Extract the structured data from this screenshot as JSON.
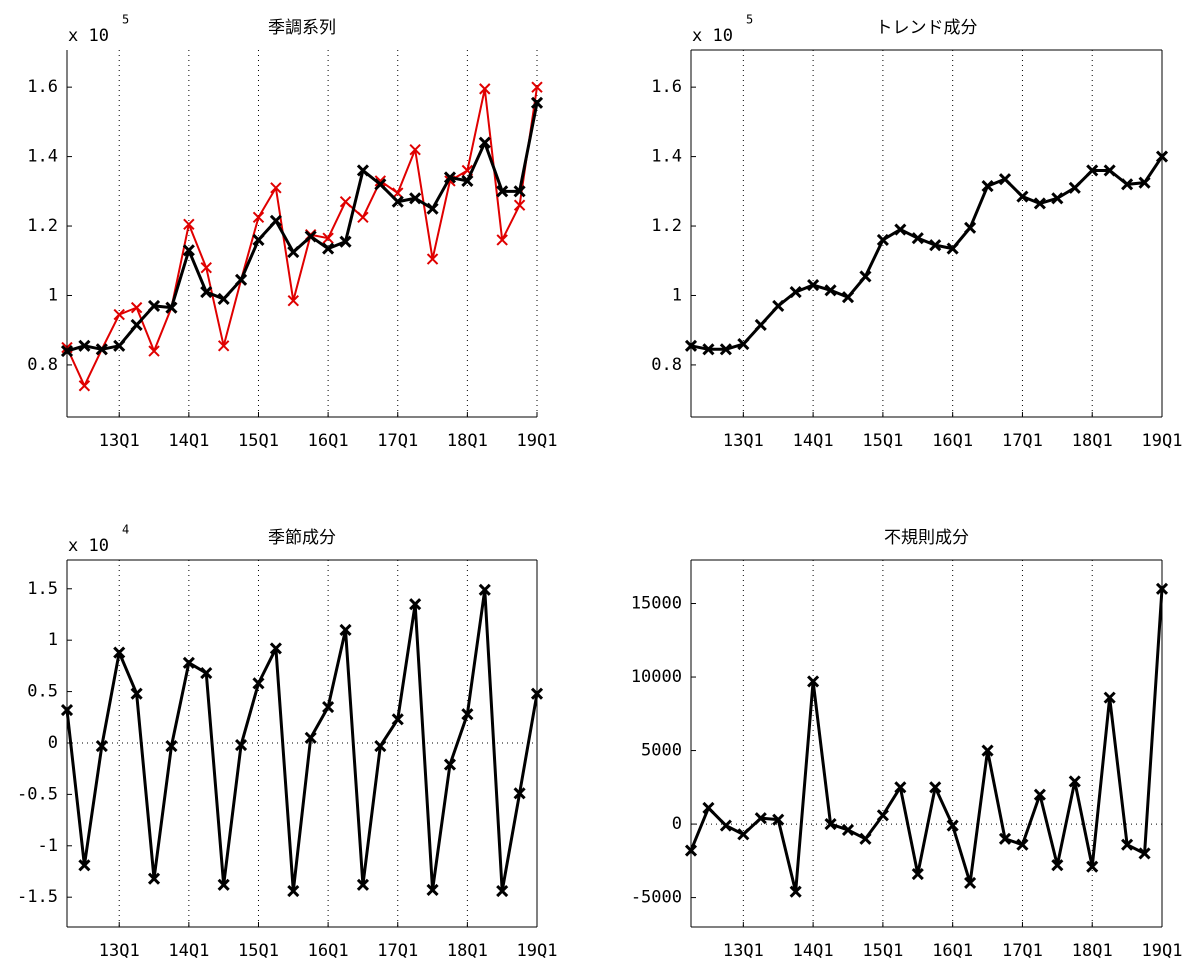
{
  "chart_data": [
    {
      "type": "line",
      "title": "季調系列",
      "multiplier": {
        "base": "x 10",
        "exponent": "5"
      },
      "categories": [
        null,
        null,
        null,
        "13Q1",
        null,
        null,
        null,
        "14Q1",
        null,
        null,
        null,
        "15Q1",
        null,
        null,
        null,
        "16Q1",
        null,
        null,
        null,
        "17Q1",
        null,
        null,
        null,
        "18Q1",
        null,
        null,
        null,
        "19Q1"
      ],
      "series": [
        {
          "color": "#e00000",
          "values": [
            85000,
            74000,
            84500,
            94500,
            96500,
            84000,
            96500,
            120500,
            108000,
            85500,
            104500,
            122500,
            131000,
            98500,
            117500,
            116500,
            127000,
            122500,
            133000,
            129500,
            142000,
            110500,
            133000,
            136000,
            159500,
            116000,
            126000,
            160000
          ]
        },
        {
          "color": "#000000",
          "values": [
            84000,
            85500,
            84500,
            85500,
            91500,
            97000,
            96500,
            113000,
            101000,
            99000,
            104500,
            116000,
            121500,
            112500,
            117000,
            113500,
            115500,
            136000,
            132000,
            127000,
            128000,
            125000,
            134000,
            133000,
            144000,
            130000,
            130000,
            155500
          ]
        }
      ],
      "ylim": [
        65000,
        170700
      ],
      "yticks": [
        {
          "value": 80000,
          "label": "0.8"
        },
        {
          "value": 100000,
          "label": "1"
        },
        {
          "value": 120000,
          "label": "1.2"
        },
        {
          "value": 140000,
          "label": "1.4"
        },
        {
          "value": 160000,
          "label": "1.6"
        }
      ],
      "grid": true,
      "box": false,
      "zero_line": false
    },
    {
      "type": "line",
      "title": "トレンド成分",
      "multiplier": {
        "base": "x 10",
        "exponent": "5"
      },
      "categories": [
        null,
        null,
        null,
        "13Q1",
        null,
        null,
        null,
        "14Q1",
        null,
        null,
        null,
        "15Q1",
        null,
        null,
        null,
        "16Q1",
        null,
        null,
        null,
        "17Q1",
        null,
        null,
        null,
        "18Q1",
        null,
        null,
        null,
        "19Q1"
      ],
      "series": [
        {
          "color": "#000000",
          "values": [
            85500,
            84500,
            84500,
            86000,
            91500,
            97000,
            101000,
            103000,
            101500,
            99500,
            105500,
            116000,
            119000,
            116500,
            114500,
            113500,
            119500,
            131500,
            133500,
            128500,
            126500,
            128000,
            131000,
            136000,
            136000,
            132000,
            132500,
            140000
          ]
        }
      ],
      "ylim": [
        65000,
        170700
      ],
      "yticks": [
        {
          "value": 80000,
          "label": "0.8"
        },
        {
          "value": 100000,
          "label": "1"
        },
        {
          "value": 120000,
          "label": "1.2"
        },
        {
          "value": 140000,
          "label": "1.4"
        },
        {
          "value": 160000,
          "label": "1.6"
        }
      ],
      "grid": true,
      "box": true,
      "zero_line": false
    },
    {
      "type": "line",
      "title": "季節成分",
      "multiplier": {
        "base": "x 10",
        "exponent": "4"
      },
      "categories": [
        null,
        null,
        null,
        "13Q1",
        null,
        null,
        null,
        "14Q1",
        null,
        null,
        null,
        "15Q1",
        null,
        null,
        null,
        "16Q1",
        null,
        null,
        null,
        "17Q1",
        null,
        null,
        null,
        "18Q1",
        null,
        null,
        null,
        "19Q1"
      ],
      "series": [
        {
          "color": "#000000",
          "values": [
            3200,
            -11900,
            -300,
            8800,
            4800,
            -13200,
            -300,
            7800,
            6800,
            -13800,
            -200,
            5800,
            9200,
            -14400,
            500,
            3500,
            11000,
            -13800,
            -300,
            2300,
            13500,
            -14300,
            -2100,
            2800,
            14900,
            -14400,
            -4900,
            4800
          ]
        }
      ],
      "ylim": [
        -17900,
        17800
      ],
      "yticks": [
        {
          "value": -15000,
          "label": "-1.5"
        },
        {
          "value": -10000,
          "label": "-1"
        },
        {
          "value": -5000,
          "label": "-0.5"
        },
        0,
        {
          "value": 5000,
          "label": "0.5"
        },
        {
          "value": 10000,
          "label": "1"
        },
        {
          "value": 15000,
          "label": "1.5"
        }
      ],
      "grid": true,
      "box": true,
      "zero_line": true
    },
    {
      "type": "line",
      "title": "不規則成分",
      "categories": [
        null,
        null,
        null,
        "13Q1",
        null,
        null,
        null,
        "14Q1",
        null,
        null,
        null,
        "15Q1",
        null,
        null,
        null,
        "16Q1",
        null,
        null,
        null,
        "17Q1",
        null,
        null,
        null,
        "18Q1",
        null,
        null,
        null,
        "19Q1"
      ],
      "series": [
        {
          "color": "#000000",
          "values": [
            -1800,
            1100,
            -100,
            -700,
            400,
            300,
            -4600,
            9700,
            0,
            -400,
            -1000,
            600,
            2500,
            -3400,
            2500,
            -100,
            -4000,
            5000,
            -1000,
            -1400,
            2000,
            -2800,
            2900,
            -2900,
            8600,
            -1400,
            -2000,
            16000
          ]
        }
      ],
      "ylim": [
        -7000,
        17960
      ],
      "yticks": [
        -5000,
        0,
        5000,
        10000,
        15000
      ],
      "grid": true,
      "box": true,
      "zero_line": true
    }
  ]
}
